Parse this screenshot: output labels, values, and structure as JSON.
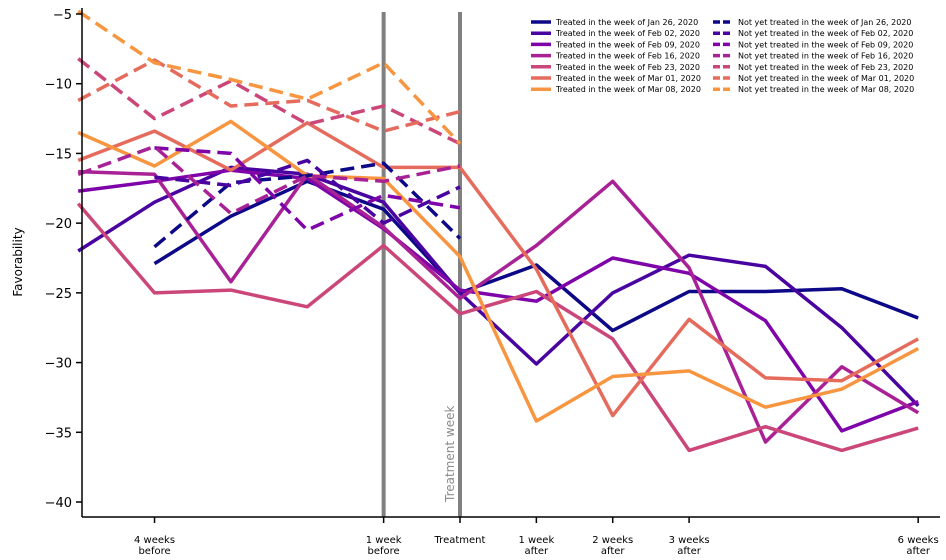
{
  "chart_data": {
    "type": "line",
    "ylabel": "Favorability",
    "ylim": [
      -41,
      -5
    ],
    "xlim": [
      -4.95,
      6.05
    ],
    "yticks": [
      -5,
      -10,
      -15,
      -20,
      -25,
      -30,
      -35,
      -40
    ],
    "xticks": [
      {
        "x": -4,
        "label": [
          "4 weeks",
          "before"
        ]
      },
      {
        "x": -1,
        "label": [
          "1 week",
          "before"
        ]
      },
      {
        "x": 0,
        "label": [
          "Treatment"
        ]
      },
      {
        "x": 1,
        "label": [
          "1 week",
          "after"
        ]
      },
      {
        "x": 2,
        "label": [
          "2 weeks",
          "after"
        ]
      },
      {
        "x": 3,
        "label": [
          "3 weeks",
          "after"
        ]
      },
      {
        "x": 6,
        "label": [
          "6 weeks",
          "after"
        ]
      }
    ],
    "vlines": [
      -1,
      0
    ],
    "annotation": {
      "text": "Treatment week",
      "x": 0
    },
    "legend_position": "upper-right",
    "treated": [
      {
        "name": "Treated in the week of Jan 26, 2020",
        "color": "#0d0887",
        "x": [
          -4,
          -3,
          -2,
          -1,
          0,
          1,
          2,
          3,
          4,
          5,
          6
        ],
        "y": [
          -22.9,
          -19.5,
          -17.0,
          -19.0,
          -25.0,
          -23.0,
          -27.7,
          -24.9,
          -24.9,
          -24.7,
          -26.8
        ]
      },
      {
        "name": "Treated in the week of Feb 02, 2020",
        "color": "#4903a0",
        "x": [
          -5,
          -4,
          -3,
          -2,
          -1,
          0,
          1,
          2,
          3,
          4,
          5,
          6
        ],
        "y": [
          -22.0,
          -18.5,
          -16.0,
          -16.5,
          -18.5,
          -25.0,
          -30.1,
          -25.0,
          -22.3,
          -23.1,
          -27.5,
          -33.1
        ]
      },
      {
        "name": "Treated in the week of Feb 09, 2020",
        "color": "#7e03a8",
        "x": [
          -5,
          -4,
          -3,
          -2,
          -1,
          0,
          1,
          2,
          3,
          4,
          5,
          6
        ],
        "y": [
          -17.7,
          -17.0,
          -16.2,
          -16.8,
          -20.4,
          -24.8,
          -25.6,
          -22.5,
          -23.6,
          -27.0,
          -34.9,
          -32.8
        ]
      },
      {
        "name": "Treated in the week of Feb 16, 2020",
        "color": "#a82296",
        "x": [
          -5,
          -4,
          -3,
          -2,
          -1,
          0,
          1,
          2,
          3,
          4,
          5,
          6
        ],
        "y": [
          -16.3,
          -16.5,
          -24.2,
          -16.5,
          -20.3,
          -25.4,
          -21.6,
          -17.0,
          -23.2,
          -35.7,
          -30.3,
          -33.6
        ]
      },
      {
        "name": "Treated in the week of Feb 23, 2020",
        "color": "#cb4679",
        "x": [
          -5,
          -4,
          -3,
          -2,
          -1,
          0,
          1,
          2,
          3,
          4,
          5,
          6
        ],
        "y": [
          -18.6,
          -25.0,
          -24.8,
          -26.0,
          -21.6,
          -26.5,
          -24.9,
          -28.3,
          -36.3,
          -34.6,
          -36.3,
          -34.7
        ]
      },
      {
        "name": "Treated in the week of Mar 01, 2020",
        "color": "#e56b5d",
        "x": [
          -5,
          -4,
          -3,
          -2,
          -1,
          0,
          1,
          2,
          3,
          4,
          5,
          6
        ],
        "y": [
          -15.5,
          -13.4,
          -16.2,
          -12.8,
          -16.0,
          -16.0,
          -23.3,
          -33.8,
          -26.9,
          -31.1,
          -31.3,
          -28.3
        ]
      },
      {
        "name": "Treated in the week of Mar 08, 2020",
        "color": "#f89540",
        "x": [
          -5,
          -4,
          -3,
          -2,
          -1,
          0,
          1,
          2,
          3,
          4,
          5,
          6
        ],
        "y": [
          -13.5,
          -15.9,
          -12.7,
          -16.6,
          -16.8,
          -22.4,
          -34.2,
          -31.0,
          -30.6,
          -33.2,
          -31.9,
          -29.0
        ]
      }
    ],
    "not_yet_treated": [
      {
        "name": "Not yet treated in the week of Jan 26, 2020",
        "color": "#0d0887",
        "x": [
          -4,
          -3,
          -2,
          -1,
          0
        ],
        "y": [
          -21.7,
          -17.1,
          -16.6,
          -15.7,
          -21.1
        ]
      },
      {
        "name": "Not yet treated in the week of Feb 02, 2020",
        "color": "#4903a0",
        "x": [
          -4,
          -3,
          -2,
          -1,
          0
        ],
        "y": [
          -16.7,
          -17.3,
          -15.5,
          -20.0,
          -17.4
        ]
      },
      {
        "name": "Not yet treated in the week of Feb 09, 2020",
        "color": "#7e03a8",
        "x": [
          -4,
          -3,
          -2,
          -1,
          0
        ],
        "y": [
          -14.6,
          -15.0,
          -20.5,
          -18.0,
          -18.9
        ]
      },
      {
        "name": "Not yet treated in the week of Feb 16, 2020",
        "color": "#a82296",
        "x": [
          -5,
          -4,
          -3,
          -2,
          -1,
          0
        ],
        "y": [
          -16.5,
          -14.5,
          -19.3,
          -16.6,
          -17.0,
          -15.9
        ]
      },
      {
        "name": "Not yet treated in the week of Feb 23, 2020",
        "color": "#cb4679",
        "x": [
          -5,
          -4,
          -3,
          -2,
          -1,
          0
        ],
        "y": [
          -8.2,
          -12.5,
          -9.8,
          -12.9,
          -11.6,
          -14.3
        ]
      },
      {
        "name": "Not yet treated in the week of Mar 01, 2020",
        "color": "#e56b5d",
        "x": [
          -5,
          -4,
          -3,
          -2,
          -1,
          0
        ],
        "y": [
          -11.2,
          -8.3,
          -11.6,
          -11.2,
          -13.4,
          -12.0
        ]
      },
      {
        "name": "Not yet treated in the week of Mar 08, 2020",
        "color": "#f89540",
        "x": [
          -5,
          -4,
          -3,
          -2,
          -1,
          0
        ],
        "y": [
          -4.8,
          -8.5,
          -9.7,
          -11.1,
          -8.5,
          -14.3
        ]
      }
    ]
  }
}
